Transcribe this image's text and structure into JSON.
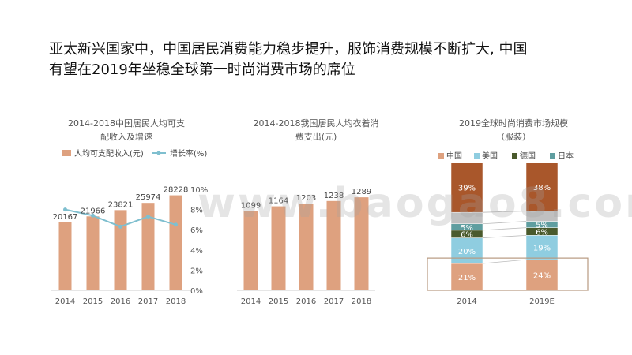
{
  "slide": {
    "title_line1": "亚太新兴国家中，中国居民消费能力稳步提升，服饰消费规模不断扩大, 中国",
    "title_line2": "有望在2019年坐稳全球第一时尚消费市场的席位"
  },
  "watermark": "www.baogao8.com",
  "chart_data": [
    {
      "type": "bar",
      "title_line1": "2014-2018中国居民人均可支",
      "title_line2": "配收入及增速",
      "categories": [
        "2014",
        "2015",
        "2016",
        "2017",
        "2018"
      ],
      "series": [
        {
          "name": "人均可支配收入(元)",
          "values": [
            20167,
            21966,
            23821,
            25974,
            28228
          ],
          "labels": [
            "20167",
            "21966",
            "23821",
            "25974",
            "28228"
          ],
          "color": "#dea17f"
        },
        {
          "name": "增长率(%)",
          "type": "line",
          "values": [
            8.0,
            7.4,
            6.3,
            7.3,
            6.5
          ],
          "color": "#7fbfcf"
        }
      ],
      "ylim": [
        0,
        30000
      ],
      "y2lim": [
        0,
        10
      ],
      "y2_ticks": [
        "0%",
        "2%",
        "4%",
        "6%",
        "8%",
        "10%"
      ],
      "legend_position": "top"
    },
    {
      "type": "bar",
      "title_line1": "2014-2018我国居民人均衣着消",
      "title_line2": "费支出(元)",
      "categories": [
        "2014",
        "2015",
        "2016",
        "2017",
        "2018"
      ],
      "values": [
        1099,
        1164,
        1203,
        1238,
        1289
      ],
      "labels": [
        "1099",
        "1164",
        "1203",
        "1238",
        "1289"
      ],
      "ylim": [
        0,
        1400
      ],
      "color": "#dea17f"
    },
    {
      "type": "bar",
      "stacked": true,
      "title_line1": "2019全球时尚消费市场规模",
      "title_line2": "（服装）",
      "categories": [
        "2014",
        "2019E"
      ],
      "series": [
        {
          "name": "中国",
          "values": [
            21,
            24
          ],
          "labels": [
            "21%",
            "24%"
          ],
          "color": "#dea17f"
        },
        {
          "name": "美国",
          "values": [
            20,
            19
          ],
          "labels": [
            "20%",
            "19%"
          ],
          "color": "#8fcde0"
        },
        {
          "name": "德国",
          "values": [
            6,
            6
          ],
          "labels": [
            "6%",
            "6%"
          ],
          "color": "#4a5a2c"
        },
        {
          "name": "日本",
          "values": [
            5,
            5
          ],
          "labels": [
            "5%",
            "5%"
          ],
          "color": "#5f9ea0"
        },
        {
          "name": "",
          "values": [
            9,
            8
          ],
          "labels": [
            "",
            ""
          ],
          "color": "#c0c0c0"
        },
        {
          "name": "",
          "values": [
            39,
            38
          ],
          "labels": [
            "39%",
            "38%"
          ],
          "color": "#a9572b"
        }
      ],
      "ylim": [
        0,
        100
      ],
      "highlight_series": "中国",
      "legend_position": "top"
    }
  ]
}
